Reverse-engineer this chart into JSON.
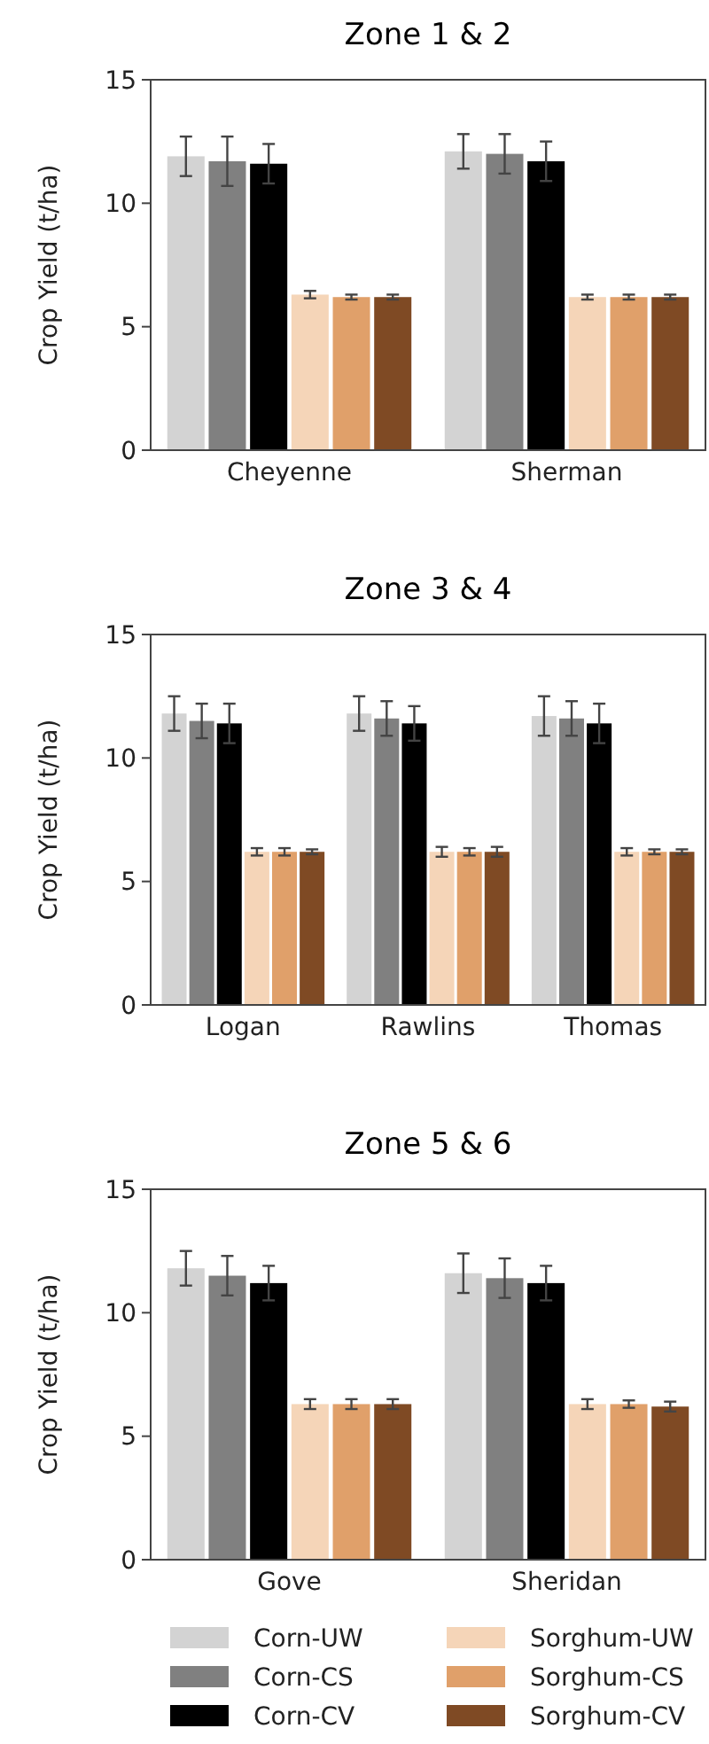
{
  "chart_data": [
    {
      "type": "bar",
      "title": "Zone 1 & 2",
      "ylabel": "Crop Yield (t/ha)",
      "categories": [
        "Cheyenne",
        "Sherman"
      ],
      "ylim": [
        0,
        15
      ],
      "yticks": [
        0,
        5,
        10,
        15
      ],
      "grid": false,
      "legend": false,
      "series": [
        {
          "color": "#d3d3d3",
          "values": [
            11.9,
            12.1
          ],
          "errors": [
            0.8,
            0.7
          ]
        },
        {
          "color": "#808080",
          "values": [
            11.7,
            12.0
          ],
          "errors": [
            1.0,
            0.8
          ]
        },
        {
          "color": "#000000",
          "values": [
            11.6,
            11.7
          ],
          "errors": [
            0.8,
            0.8
          ]
        },
        {
          "color": "#f5d5b8",
          "values": [
            6.3,
            6.2
          ],
          "errors": [
            0.15,
            0.1
          ]
        },
        {
          "color": "#e0a06a",
          "values": [
            6.2,
            6.2
          ],
          "errors": [
            0.1,
            0.1
          ]
        },
        {
          "color": "#7f4a24",
          "values": [
            6.2,
            6.2
          ],
          "errors": [
            0.1,
            0.1
          ]
        }
      ]
    },
    {
      "type": "bar",
      "title": "Zone 3 & 4",
      "ylabel": "Crop Yield (t/ha)",
      "categories": [
        "Logan",
        "Rawlins",
        "Thomas"
      ],
      "ylim": [
        0,
        15
      ],
      "yticks": [
        0,
        5,
        10,
        15
      ],
      "grid": false,
      "legend": false,
      "series": [
        {
          "color": "#d3d3d3",
          "values": [
            11.8,
            11.8,
            11.7
          ],
          "errors": [
            0.7,
            0.7,
            0.8
          ]
        },
        {
          "color": "#808080",
          "values": [
            11.5,
            11.6,
            11.6
          ],
          "errors": [
            0.7,
            0.7,
            0.7
          ]
        },
        {
          "color": "#000000",
          "values": [
            11.4,
            11.4,
            11.4
          ],
          "errors": [
            0.8,
            0.7,
            0.8
          ]
        },
        {
          "color": "#f5d5b8",
          "values": [
            6.2,
            6.2,
            6.2
          ],
          "errors": [
            0.15,
            0.2,
            0.15
          ]
        },
        {
          "color": "#e0a06a",
          "values": [
            6.2,
            6.2,
            6.2
          ],
          "errors": [
            0.15,
            0.15,
            0.1
          ]
        },
        {
          "color": "#7f4a24",
          "values": [
            6.2,
            6.2,
            6.2
          ],
          "errors": [
            0.1,
            0.2,
            0.1
          ]
        }
      ]
    },
    {
      "type": "bar",
      "title": "Zone 5 & 6",
      "ylabel": "Crop Yield (t/ha)",
      "categories": [
        "Gove",
        "Sheridan"
      ],
      "ylim": [
        0,
        15
      ],
      "yticks": [
        0,
        5,
        10,
        15
      ],
      "grid": false,
      "legend": "bottom",
      "series": [
        {
          "name": "Corn-UW",
          "color": "#d3d3d3",
          "values": [
            11.8,
            11.6
          ],
          "errors": [
            0.7,
            0.8
          ]
        },
        {
          "name": "Corn-CS",
          "color": "#808080",
          "values": [
            11.5,
            11.4
          ],
          "errors": [
            0.8,
            0.8
          ]
        },
        {
          "name": "Corn-CV",
          "color": "#000000",
          "values": [
            11.2,
            11.2
          ],
          "errors": [
            0.7,
            0.7
          ]
        },
        {
          "name": "Sorghum-UW",
          "color": "#f5d5b8",
          "values": [
            6.3,
            6.3
          ],
          "errors": [
            0.2,
            0.2
          ]
        },
        {
          "name": "Sorghum-CS",
          "color": "#e0a06a",
          "values": [
            6.3,
            6.3
          ],
          "errors": [
            0.2,
            0.15
          ]
        },
        {
          "name": "Sorghum-CV",
          "color": "#7f4a24",
          "values": [
            6.3,
            6.2
          ],
          "errors": [
            0.2,
            0.2
          ]
        }
      ]
    }
  ]
}
